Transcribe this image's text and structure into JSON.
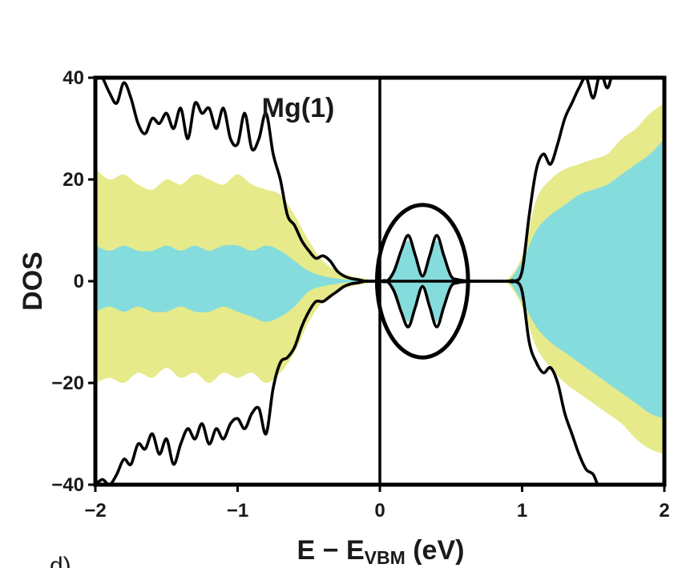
{
  "chart_data": {
    "type": "area",
    "title": "",
    "annotation": "Mg(1)",
    "panel_label": "d)",
    "xlabel": "E − E",
    "xlabel_sub": "VBM",
    "xlabel_unit": " (eV)",
    "ylabel": "DOS",
    "xlim": [
      -2,
      2
    ],
    "ylim": [
      -40,
      40
    ],
    "xticks": [
      -2,
      -1,
      0,
      1,
      2
    ],
    "xtick_labels": [
      "−2",
      "−1",
      "0",
      "1",
      "2"
    ],
    "yticks": [
      -40,
      -20,
      0,
      20,
      40
    ],
    "ytick_labels": [
      "−40",
      "−20",
      "0",
      "20",
      "40"
    ],
    "vertical_line_x": 0,
    "highlight_ellipse": {
      "center": [
        0.3,
        0
      ],
      "rx": 0.32,
      "ry": 15
    },
    "colors": {
      "total": "#000000",
      "yellow": "#e6ea8a",
      "cyan": "#85dcdc"
    },
    "series": [
      {
        "kind": "total-line",
        "x": [
          -2.0,
          -1.95,
          -1.9,
          -1.85,
          -1.8,
          -1.75,
          -1.7,
          -1.65,
          -1.6,
          -1.55,
          -1.5,
          -1.45,
          -1.4,
          -1.35,
          -1.3,
          -1.25,
          -1.2,
          -1.15,
          -1.1,
          -1.05,
          -1.0,
          -0.95,
          -0.9,
          -0.85,
          -0.8,
          -0.75,
          -0.7,
          -0.65,
          -0.6,
          -0.55,
          -0.5,
          -0.45,
          -0.4,
          -0.35,
          -0.3,
          -0.25,
          -0.2,
          -0.15,
          -0.1,
          -0.05,
          0.0,
          0.05,
          0.1,
          0.15,
          0.2,
          0.25,
          0.3,
          0.35,
          0.4,
          0.45,
          0.5,
          0.55,
          0.6,
          0.65,
          0.7,
          0.75,
          0.8,
          0.85,
          0.9,
          0.95,
          1.0,
          1.05,
          1.1,
          1.15,
          1.2,
          1.25,
          1.3,
          1.35,
          1.4,
          1.45,
          1.5,
          1.55,
          1.6,
          1.65,
          1.7
        ],
        "values": [
          42,
          40,
          37,
          35,
          39,
          36,
          31,
          29,
          32,
          31,
          33,
          30,
          34,
          28,
          35,
          33,
          34,
          30,
          34,
          28,
          27,
          33,
          26,
          28,
          33,
          25,
          20,
          13,
          11,
          8,
          6,
          4.5,
          5,
          4,
          2,
          1,
          0.5,
          0.3,
          0,
          0,
          0,
          0,
          2,
          6,
          9,
          5,
          1,
          5,
          9,
          5,
          1,
          0.3,
          0.1,
          0,
          0,
          0,
          0,
          0,
          0,
          0,
          2,
          13,
          22,
          25,
          23,
          27,
          32,
          35,
          38,
          40,
          36,
          41,
          38,
          42,
          40
        ]
      },
      {
        "kind": "total-line-negative",
        "x": [
          -2.0,
          -1.95,
          -1.9,
          -1.85,
          -1.8,
          -1.75,
          -1.7,
          -1.65,
          -1.6,
          -1.55,
          -1.5,
          -1.45,
          -1.4,
          -1.35,
          -1.3,
          -1.25,
          -1.2,
          -1.15,
          -1.1,
          -1.05,
          -1.0,
          -0.95,
          -0.9,
          -0.85,
          -0.8,
          -0.75,
          -0.7,
          -0.65,
          -0.6,
          -0.55,
          -0.5,
          -0.45,
          -0.4,
          -0.35,
          -0.3,
          -0.25,
          -0.2,
          -0.15,
          -0.1,
          -0.05,
          0.0,
          0.05,
          0.1,
          0.15,
          0.2,
          0.25,
          0.3,
          0.35,
          0.4,
          0.45,
          0.5,
          0.55,
          0.6,
          0.65,
          0.7,
          0.75,
          0.8,
          0.85,
          0.9,
          0.95,
          1.0,
          1.05,
          1.1,
          1.15,
          1.2,
          1.25,
          1.3,
          1.35,
          1.4,
          1.45,
          1.5,
          1.55,
          1.6,
          1.65,
          1.7,
          1.75
        ],
        "values": [
          -40,
          -39,
          -40,
          -38,
          -35,
          -36,
          -32,
          -33,
          -30,
          -34,
          -31,
          -36,
          -32,
          -29,
          -31,
          -28,
          -32,
          -29,
          -31,
          -28,
          -27,
          -29,
          -26,
          -25,
          -30,
          -21,
          -16,
          -15,
          -13,
          -9,
          -6,
          -4,
          -4,
          -3,
          -2,
          -1,
          -0.5,
          -0.3,
          0,
          0,
          0,
          0,
          -2,
          -6,
          -9,
          -5,
          -1,
          -5,
          -9,
          -5,
          -1,
          -0.3,
          -0.1,
          0,
          0,
          0,
          0,
          0,
          0,
          0,
          -2,
          -12,
          -16,
          -18,
          -17,
          -20,
          -26,
          -30,
          -34,
          -37,
          -38,
          -41,
          -40,
          -42,
          -41,
          -40
        ]
      },
      {
        "kind": "yellow-band",
        "x": [
          -2.0,
          -1.9,
          -1.8,
          -1.7,
          -1.6,
          -1.5,
          -1.4,
          -1.3,
          -1.2,
          -1.1,
          -1.0,
          -0.9,
          -0.8,
          -0.7,
          -0.6,
          -0.5,
          -0.4,
          -0.3,
          -0.2,
          -0.1,
          0.0,
          0.5,
          0.6,
          0.7,
          0.8,
          0.9,
          1.0,
          1.1,
          1.2,
          1.3,
          1.4,
          1.5,
          1.6,
          1.7,
          1.8,
          1.9,
          2.0
        ],
        "upper": [
          22,
          20,
          21,
          19,
          18,
          20,
          19,
          21,
          20,
          19,
          21,
          19,
          18,
          17,
          13,
          8,
          4,
          2,
          1,
          0.5,
          0,
          0,
          0,
          0,
          0,
          0.5,
          5,
          16,
          20,
          22,
          23,
          24,
          25,
          28,
          30,
          33,
          35
        ],
        "lower": [
          -20,
          -19,
          -20,
          -18,
          -19,
          -17,
          -19,
          -18,
          -20,
          -18,
          -19,
          -18,
          -20,
          -18,
          -14,
          -8,
          -4,
          -2,
          -1,
          -0.5,
          0,
          0,
          0,
          0,
          0,
          -0.5,
          -5,
          -13,
          -17,
          -20,
          -22,
          -24,
          -26,
          -28,
          -31,
          -33,
          -34
        ]
      },
      {
        "kind": "cyan-band",
        "x": [
          -2.0,
          -1.9,
          -1.8,
          -1.7,
          -1.6,
          -1.5,
          -1.4,
          -1.3,
          -1.2,
          -1.1,
          -1.0,
          -0.9,
          -0.8,
          -0.7,
          -0.6,
          -0.5,
          -0.4,
          -0.3,
          -0.2,
          -0.1,
          0.0,
          0.05,
          0.1,
          0.15,
          0.2,
          0.25,
          0.3,
          0.35,
          0.4,
          0.45,
          0.5,
          0.6,
          0.7,
          0.8,
          0.9,
          1.0,
          1.1,
          1.2,
          1.3,
          1.4,
          1.5,
          1.6,
          1.7,
          1.8,
          1.9,
          2.0
        ],
        "upper": [
          7,
          6,
          7,
          6,
          6,
          7,
          6,
          7,
          6,
          7,
          7,
          6,
          7,
          6,
          4,
          2,
          1,
          0.5,
          0.2,
          0,
          0,
          0,
          1.5,
          5,
          8,
          4,
          1,
          4,
          8,
          4,
          0.5,
          0,
          0,
          0,
          0,
          4,
          10,
          13,
          15,
          17,
          18,
          19,
          21,
          23,
          25,
          28
        ],
        "lower": [
          -6,
          -5,
          -6,
          -5,
          -6,
          -6,
          -5,
          -6,
          -6,
          -5,
          -6,
          -7,
          -8,
          -7,
          -5,
          -2,
          -1,
          -0.5,
          -0.2,
          0,
          0,
          0,
          -1.5,
          -5,
          -8,
          -4,
          -1,
          -4,
          -8,
          -4,
          -0.5,
          0,
          0,
          0,
          0,
          -4,
          -9,
          -12,
          -14,
          -16,
          -18,
          -20,
          -22,
          -24,
          -26,
          -27
        ]
      }
    ]
  }
}
